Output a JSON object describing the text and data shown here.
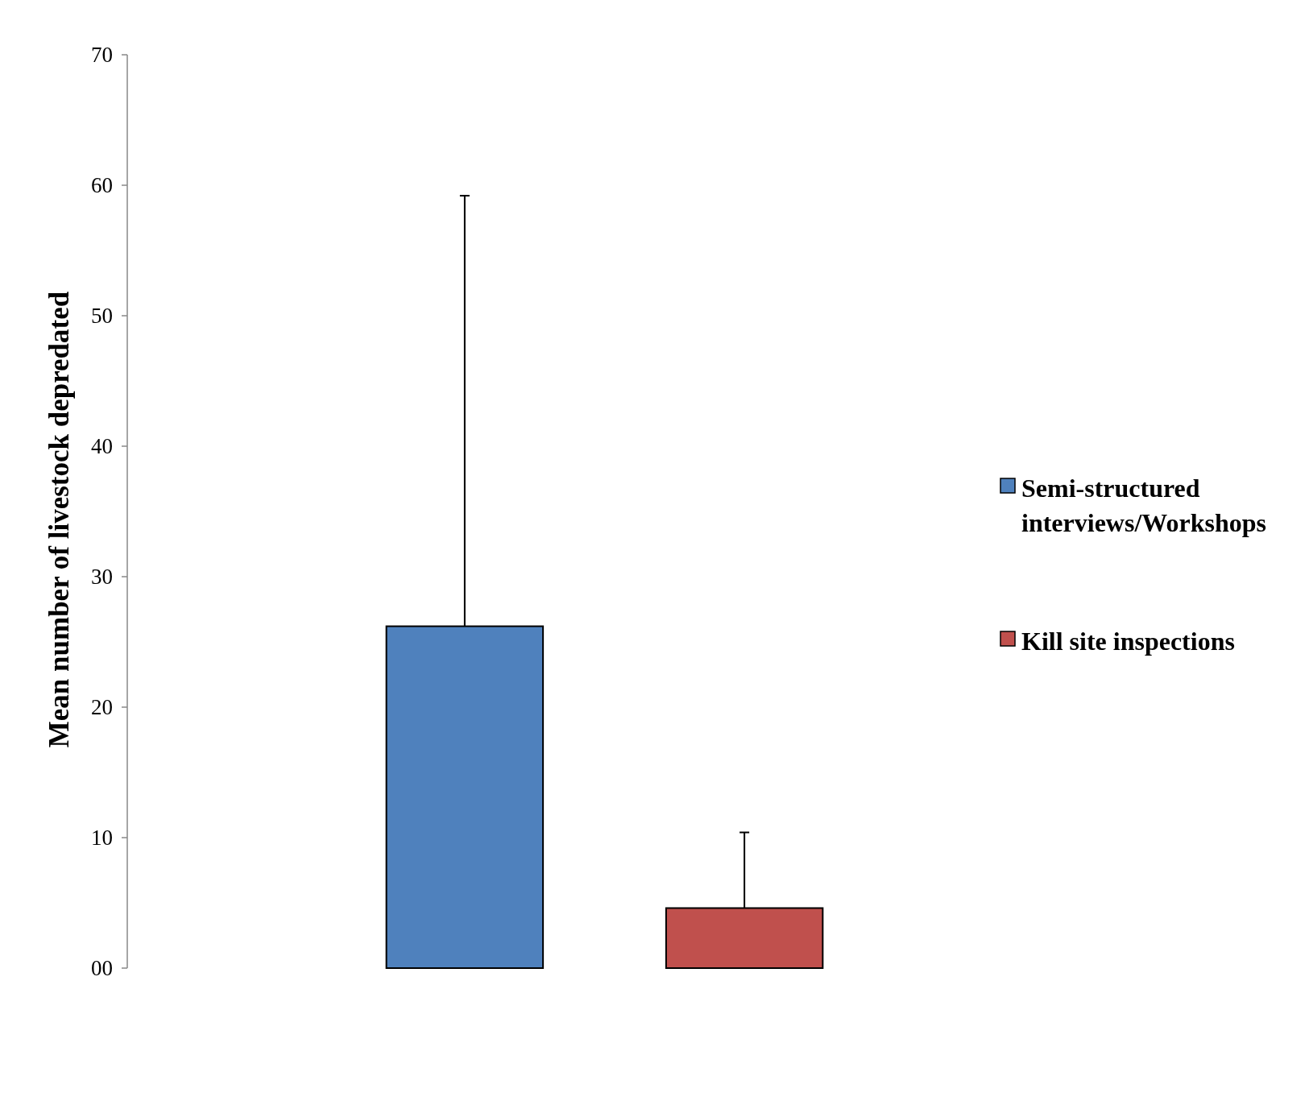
{
  "chart_data": {
    "type": "bar",
    "ylabel": "Mean number of livestock depredated",
    "categories": [
      null
    ],
    "series": [
      {
        "name": "Semi-structured interviews/Workshops",
        "color": "#4f81bd",
        "values": [
          26.2
        ],
        "errors": [
          [
            26.2,
            59.2
          ]
        ]
      },
      {
        "name": "Kill site inspections",
        "color": "#c0504d",
        "values": [
          4.6
        ],
        "errors": [
          [
            4.6,
            10.4
          ]
        ]
      }
    ],
    "ylim": [
      0,
      70
    ],
    "yticks": [
      {
        "value": 0,
        "label": "00"
      },
      10,
      20,
      30,
      40,
      50,
      60,
      70
    ],
    "grid": false,
    "legend": "right"
  }
}
